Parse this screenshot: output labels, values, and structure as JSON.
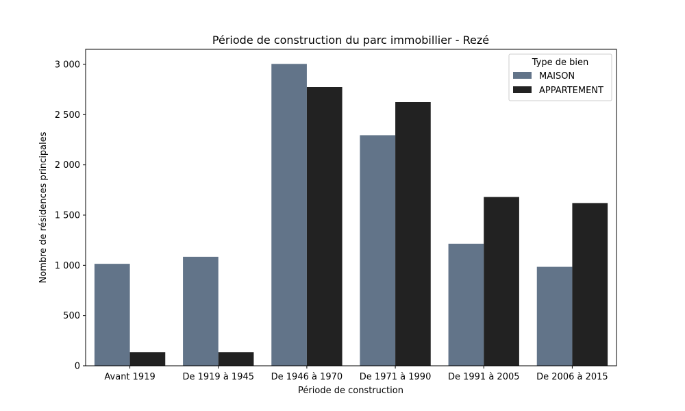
{
  "chart_data": {
    "type": "bar",
    "title": "Période de construction du parc immobillier - Rezé",
    "xlabel": "Période de construction",
    "ylabel": "Nombre de résidences principales",
    "categories": [
      "Avant 1919",
      "De 1919 à 1945",
      "De 1946 à 1970",
      "De 1971 à 1990",
      "De 1991 à 2005",
      "De 2006 à 2015"
    ],
    "series": [
      {
        "name": "MAISON",
        "color": "#627489",
        "values": [
          1015,
          1085,
          3005,
          2295,
          1215,
          985
        ]
      },
      {
        "name": "APPARTEMENT",
        "color": "#222222",
        "values": [
          135,
          135,
          2775,
          2625,
          1680,
          1620
        ]
      }
    ],
    "ylim": [
      0,
      3150
    ],
    "yticks": [
      0,
      500,
      1000,
      1500,
      2000,
      2500,
      3000
    ],
    "ytick_labels": [
      "0",
      "500",
      "1 000",
      "1 500",
      "2 000",
      "2 500",
      "3 000"
    ],
    "legend": {
      "title": "Type de bien",
      "placement": "top-right"
    },
    "grid": false
  }
}
